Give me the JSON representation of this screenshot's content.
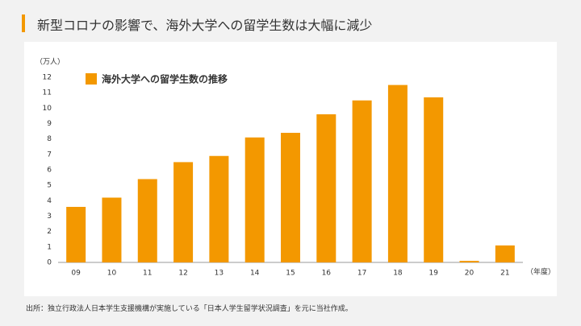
{
  "header": {
    "title": "新型コロナの影響で、海外大学への留学生数は大幅に減少"
  },
  "source": "出所：独立行政法人日本学生支援機構が実施している「日本人学生留学状況調査」を元に当社作成。",
  "chart_data": {
    "type": "bar",
    "y_label": "（万人）",
    "x_label": "（年度）",
    "categories": [
      "09",
      "10",
      "11",
      "12",
      "13",
      "14",
      "15",
      "16",
      "17",
      "18",
      "19",
      "20",
      "21"
    ],
    "series": [
      {
        "name": "海外大学への留学生数の推移",
        "color": "#f39800",
        "values": [
          3.6,
          4.2,
          5.4,
          6.5,
          6.9,
          8.1,
          8.4,
          9.6,
          10.5,
          11.5,
          10.7,
          0.1,
          1.1
        ]
      }
    ],
    "ylim": [
      0,
      12
    ],
    "yticks": [
      0,
      1,
      2,
      3,
      4,
      5,
      6,
      7,
      8,
      9,
      10,
      11,
      12
    ],
    "grid": false,
    "legend": "top-left"
  }
}
